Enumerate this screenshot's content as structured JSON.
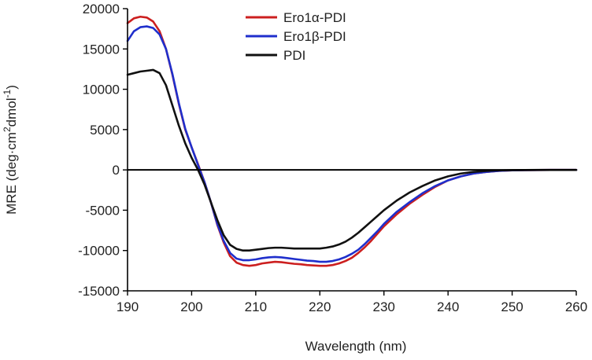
{
  "chart_data": {
    "type": "line",
    "xlabel": "Wavelength (nm)",
    "ylabel": {
      "prefix": "MRE (deg·cm",
      "sup1": "2",
      "middle": "dmol",
      "sup2": "-1",
      "suffix": ")"
    },
    "xlim": [
      190,
      260
    ],
    "ylim": [
      -15000,
      20000
    ],
    "xticks": [
      190,
      200,
      210,
      220,
      230,
      240,
      250,
      260
    ],
    "yticks": [
      -15000,
      -10000,
      -5000,
      0,
      5000,
      10000,
      15000,
      20000
    ],
    "grid": false,
    "legend_position": "top-center",
    "zero_line": true,
    "series": [
      {
        "name": "Ero1α-PDI",
        "color": "#cc1f1f",
        "x": [
          190,
          191,
          192,
          193,
          194,
          195,
          196,
          197,
          198,
          199,
          200,
          201,
          202,
          203,
          204,
          205,
          206,
          207,
          208,
          209,
          210,
          211,
          212,
          213,
          214,
          215,
          216,
          217,
          218,
          219,
          220,
          221,
          222,
          223,
          224,
          225,
          226,
          227,
          228,
          229,
          230,
          232,
          234,
          236,
          238,
          240,
          242,
          244,
          246,
          248,
          250,
          252,
          254,
          256,
          258,
          260
        ],
        "y": [
          18200,
          18800,
          19000,
          18900,
          18400,
          17200,
          15000,
          11800,
          8200,
          5000,
          2800,
          700,
          -1500,
          -4000,
          -6800,
          -9000,
          -10700,
          -11500,
          -11800,
          -11900,
          -11800,
          -11600,
          -11500,
          -11400,
          -11450,
          -11550,
          -11650,
          -11700,
          -11800,
          -11850,
          -11900,
          -11900,
          -11800,
          -11600,
          -11300,
          -10900,
          -10300,
          -9600,
          -8800,
          -7900,
          -7000,
          -5500,
          -4200,
          -3100,
          -2100,
          -1300,
          -800,
          -450,
          -250,
          -120,
          -60,
          -30,
          -15,
          -5,
          0,
          0
        ]
      },
      {
        "name": "Ero1β-PDI",
        "color": "#1f2fcc",
        "x": [
          190,
          191,
          192,
          193,
          194,
          195,
          196,
          197,
          198,
          199,
          200,
          201,
          202,
          203,
          204,
          205,
          206,
          207,
          208,
          209,
          210,
          211,
          212,
          213,
          214,
          215,
          216,
          217,
          218,
          219,
          220,
          221,
          222,
          223,
          224,
          225,
          226,
          227,
          228,
          229,
          230,
          232,
          234,
          236,
          238,
          240,
          242,
          244,
          246,
          248,
          250,
          252,
          254,
          256,
          258,
          260
        ],
        "y": [
          16000,
          17200,
          17700,
          17800,
          17600,
          16800,
          15000,
          11900,
          8300,
          5100,
          2800,
          600,
          -1500,
          -4000,
          -6700,
          -8800,
          -10300,
          -11000,
          -11200,
          -11200,
          -11100,
          -10950,
          -10850,
          -10800,
          -10850,
          -10950,
          -11050,
          -11150,
          -11250,
          -11300,
          -11400,
          -11400,
          -11300,
          -11100,
          -10800,
          -10400,
          -9900,
          -9200,
          -8400,
          -7600,
          -6700,
          -5200,
          -4000,
          -2900,
          -2000,
          -1300,
          -800,
          -450,
          -250,
          -120,
          -60,
          -30,
          -15,
          -5,
          0,
          0
        ]
      },
      {
        "name": "PDI",
        "color": "#111111",
        "x": [
          190,
          191,
          192,
          193,
          194,
          195,
          196,
          197,
          198,
          199,
          200,
          201,
          202,
          203,
          204,
          205,
          206,
          207,
          208,
          209,
          210,
          211,
          212,
          213,
          214,
          215,
          216,
          217,
          218,
          219,
          220,
          221,
          222,
          223,
          224,
          225,
          226,
          227,
          228,
          229,
          230,
          232,
          234,
          236,
          238,
          240,
          242,
          244,
          246,
          248,
          250,
          252,
          254,
          256,
          258,
          260
        ],
        "y": [
          11800,
          12000,
          12200,
          12300,
          12400,
          12000,
          10500,
          8000,
          5500,
          3300,
          1500,
          0,
          -1800,
          -4000,
          -6200,
          -8100,
          -9300,
          -9800,
          -10000,
          -10000,
          -9900,
          -9800,
          -9700,
          -9650,
          -9650,
          -9700,
          -9750,
          -9750,
          -9750,
          -9750,
          -9750,
          -9650,
          -9500,
          -9250,
          -8900,
          -8400,
          -7800,
          -7100,
          -6400,
          -5700,
          -5000,
          -3800,
          -2800,
          -2000,
          -1300,
          -800,
          -450,
          -250,
          -130,
          -60,
          -30,
          -15,
          -5,
          0,
          0,
          0
        ]
      }
    ]
  }
}
